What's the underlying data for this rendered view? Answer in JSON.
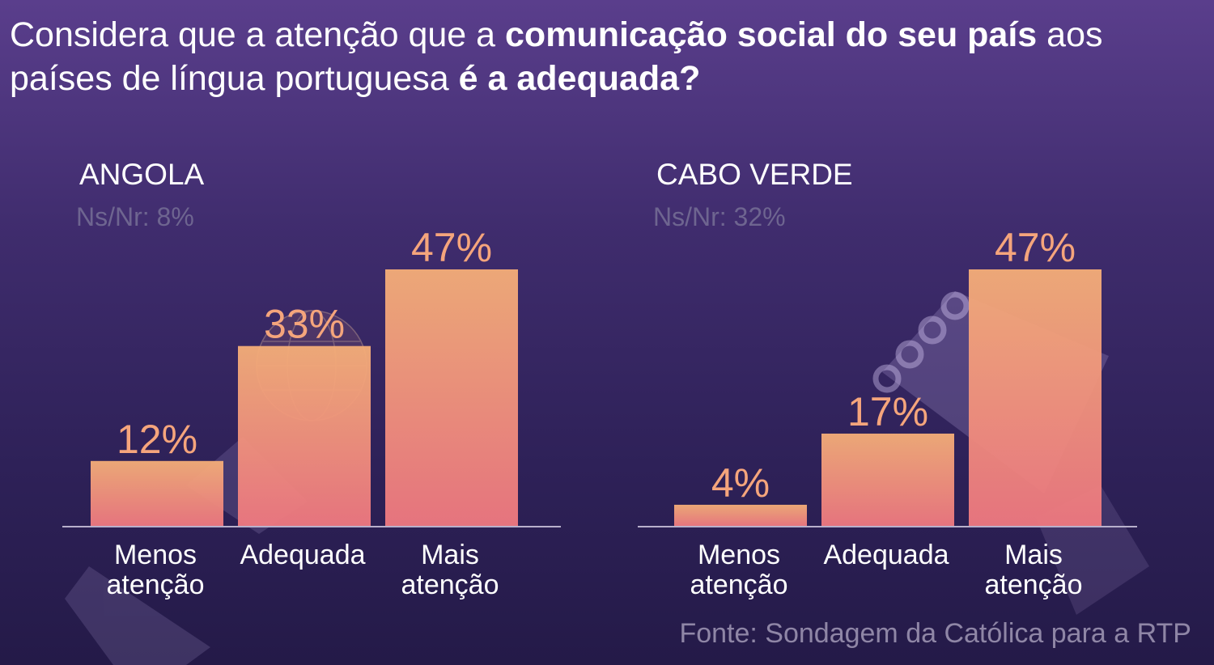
{
  "title": {
    "part1": "Considera que a atenção que a ",
    "bold1": "comunicação social do seu país",
    "part2": " aos países de língua portuguesa ",
    "bold2": "é a adequada?"
  },
  "colors": {
    "bar_top": "#f5ae78",
    "bar_bottom": "#ef7880",
    "label": "#f5a57c",
    "axis": "#b8b0cc",
    "nsnr": "#6e6590",
    "category": "#ffffff"
  },
  "chart_data": [
    {
      "type": "bar",
      "title": "ANGOLA",
      "subtitle": "Ns/Nr: 8%",
      "categories": [
        "Menos atenção",
        "Adequada",
        "Mais atenção"
      ],
      "category_lines": [
        [
          "Menos",
          "atenção"
        ],
        [
          "Adequada"
        ],
        [
          "Mais",
          "atenção"
        ]
      ],
      "values": [
        12,
        33,
        47
      ],
      "value_labels": [
        "12%",
        "33%",
        "47%"
      ],
      "ylim": [
        0,
        47
      ],
      "grid": false,
      "legend": "none"
    },
    {
      "type": "bar",
      "title": "CABO VERDE",
      "subtitle": "Ns/Nr: 32%",
      "categories": [
        "Menos atenção",
        "Adequada",
        "Mais atenção"
      ],
      "category_lines": [
        [
          "Menos",
          "atenção"
        ],
        [
          "Adequada"
        ],
        [
          "Mais",
          "atenção"
        ]
      ],
      "values": [
        4,
        17,
        47
      ],
      "value_labels": [
        "4%",
        "17%",
        "47%"
      ],
      "ylim": [
        0,
        47
      ],
      "grid": false,
      "legend": "none"
    }
  ],
  "source": "Fonte: Sondagem da Católica para a RTP"
}
